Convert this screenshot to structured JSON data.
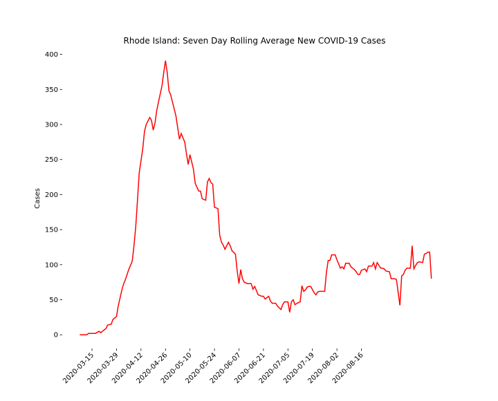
{
  "chart_data": {
    "type": "line",
    "title": "Rhode Island: Seven Day Rolling Average New COVID-19 Cases",
    "y_label": "Cases",
    "x": [
      "2020-03-08",
      "2020-03-12",
      "2020-03-13",
      "2020-03-17",
      "2020-03-19",
      "2020-03-20",
      "2020-03-23",
      "2020-03-24",
      "2020-03-26",
      "2020-03-27",
      "2020-03-29",
      "2020-03-30",
      "2020-04-01",
      "2020-04-02",
      "2020-04-03",
      "2020-04-05",
      "2020-04-07",
      "2020-04-08",
      "2020-04-09",
      "2020-04-10",
      "2020-04-11",
      "2020-04-13",
      "2020-04-14",
      "2020-04-15",
      "2020-04-17",
      "2020-04-18",
      "2020-04-19",
      "2020-04-20",
      "2020-04-21",
      "2020-04-22",
      "2020-04-24",
      "2020-04-25",
      "2020-04-26",
      "2020-04-27",
      "2020-04-28",
      "2020-04-29",
      "2020-04-30",
      "2020-05-02",
      "2020-05-03",
      "2020-05-04",
      "2020-05-05",
      "2020-05-07",
      "2020-05-08",
      "2020-05-09",
      "2020-05-10",
      "2020-05-12",
      "2020-05-13",
      "2020-05-15",
      "2020-05-16",
      "2020-05-17",
      "2020-05-19",
      "2020-05-20",
      "2020-05-21",
      "2020-05-22",
      "2020-05-23",
      "2020-05-24",
      "2020-05-26",
      "2020-05-27",
      "2020-05-28",
      "2020-05-29",
      "2020-05-30",
      "2020-06-01",
      "2020-06-02",
      "2020-06-03",
      "2020-06-05",
      "2020-06-06",
      "2020-06-07",
      "2020-06-08",
      "2020-06-09",
      "2020-06-10",
      "2020-06-12",
      "2020-06-14",
      "2020-06-15",
      "2020-06-16",
      "2020-06-17",
      "2020-06-18",
      "2020-06-20",
      "2020-06-21",
      "2020-06-22",
      "2020-06-24",
      "2020-06-25",
      "2020-06-26",
      "2020-06-28",
      "2020-06-29",
      "2020-07-01",
      "2020-07-02",
      "2020-07-03",
      "2020-07-05",
      "2020-07-06",
      "2020-07-07",
      "2020-07-08",
      "2020-07-09",
      "2020-07-11",
      "2020-07-12",
      "2020-07-13",
      "2020-07-14",
      "2020-07-15",
      "2020-07-16",
      "2020-07-17",
      "2020-07-18",
      "2020-07-20",
      "2020-07-21",
      "2020-07-22",
      "2020-07-23",
      "2020-07-24",
      "2020-07-26",
      "2020-07-27",
      "2020-07-28",
      "2020-07-29",
      "2020-07-30",
      "2020-08-01",
      "2020-08-02",
      "2020-08-04",
      "2020-08-05",
      "2020-08-06",
      "2020-08-07",
      "2020-08-09",
      "2020-08-10",
      "2020-08-12",
      "2020-08-13",
      "2020-08-14",
      "2020-08-15",
      "2020-08-16",
      "2020-08-18",
      "2020-08-19",
      "2020-08-20",
      "2020-08-22",
      "2020-08-23",
      "2020-08-24",
      "2020-08-25",
      "2020-08-27",
      "2020-08-28",
      "2020-08-29",
      "2020-08-30",
      "2020-09-01",
      "2020-09-02",
      "2020-09-04",
      "2020-09-05",
      "2020-09-07",
      "2020-09-08",
      "2020-09-09",
      "2020-09-10",
      "2020-09-11",
      "2020-09-13",
      "2020-09-14",
      "2020-09-15",
      "2020-09-16",
      "2020-09-17",
      "2020-09-18",
      "2020-09-20",
      "2020-09-21",
      "2020-09-22",
      "2020-09-23",
      "2020-09-24",
      "2020-09-25"
    ],
    "series": [
      {
        "name": "Cases",
        "color": "#ff0000",
        "values": [
          0,
          0,
          2,
          2,
          5,
          3,
          9,
          14,
          15,
          22,
          26,
          41,
          63,
          72,
          78,
          93,
          105,
          127,
          154,
          192,
          231,
          265,
          290,
          300,
          310,
          306,
          292,
          302,
          320,
          332,
          355,
          374,
          391,
          374,
          348,
          342,
          332,
          312,
          295,
          279,
          287,
          275,
          258,
          243,
          257,
          236,
          216,
          205,
          205,
          194,
          192,
          218,
          223,
          217,
          215,
          182,
          180,
          142,
          132,
          128,
          122,
          132,
          127,
          120,
          115,
          91,
          73,
          93,
          80,
          75,
          73,
          73,
          65,
          69,
          63,
          57,
          55,
          55,
          51,
          55,
          48,
          45,
          45,
          41,
          36,
          43,
          47,
          47,
          32,
          47,
          50,
          43,
          46,
          47,
          70,
          62,
          64,
          68,
          69,
          69,
          60,
          57,
          61,
          62,
          62,
          62,
          89,
          106,
          106,
          114,
          114,
          107,
          95,
          97,
          94,
          102,
          102,
          97,
          93,
          90,
          86,
          86,
          92,
          94,
          90,
          98,
          98,
          103,
          94,
          103,
          95,
          95,
          94,
          91,
          90,
          80,
          80,
          79,
          42,
          84,
          86,
          92,
          95,
          95,
          127,
          94,
          99,
          103,
          104,
          103,
          115,
          116,
          118,
          118,
          80
        ]
      }
    ],
    "xlim": [
      "2020-02-27",
      "2020-10-05"
    ],
    "xticks": [
      "2020-03-15",
      "2020-03-29",
      "2020-04-12",
      "2020-04-26",
      "2020-05-10",
      "2020-05-24",
      "2020-06-07",
      "2020-06-21",
      "2020-07-05",
      "2020-07-19",
      "2020-08-02",
      "2020-08-16"
    ],
    "ylim": [
      -19.5,
      409.5
    ],
    "yticks": [
      0,
      50,
      100,
      150,
      200,
      250,
      300,
      350,
      400
    ]
  }
}
